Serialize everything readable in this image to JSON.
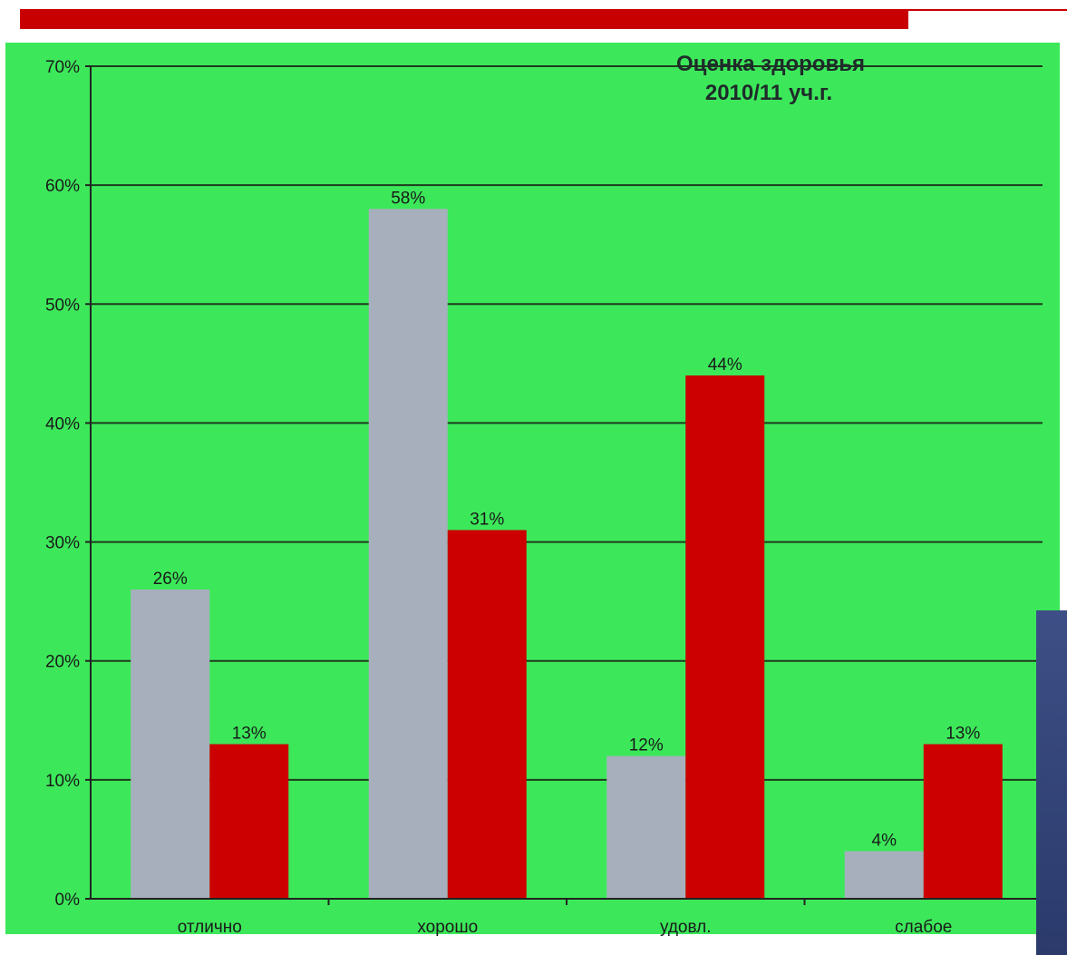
{
  "chart_data": {
    "type": "bar",
    "title": [
      "Оценка здоровья",
      "2010/11 уч.г."
    ],
    "categories": [
      "отлично",
      "хорошо",
      "удовл.",
      "слабое"
    ],
    "series": [
      {
        "values": [
          26,
          58,
          12,
          4
        ],
        "labels": [
          "26%",
          "58%",
          "12%",
          "4%"
        ],
        "color": "#a7afbd"
      },
      {
        "values": [
          13,
          31,
          44,
          13
        ],
        "labels": [
          "13%",
          "31%",
          "44%",
          "13%"
        ],
        "color": "#cc0000"
      }
    ],
    "ylim": [
      0,
      70
    ],
    "yticks": [
      "0%",
      "10%",
      "20%",
      "30%",
      "40%",
      "50%",
      "60%",
      "70%"
    ],
    "grid": true,
    "legend": "none"
  },
  "colors": {
    "background": "#3ce85a",
    "accent_bar": "#c80000",
    "side_box": "#3d4f86"
  }
}
